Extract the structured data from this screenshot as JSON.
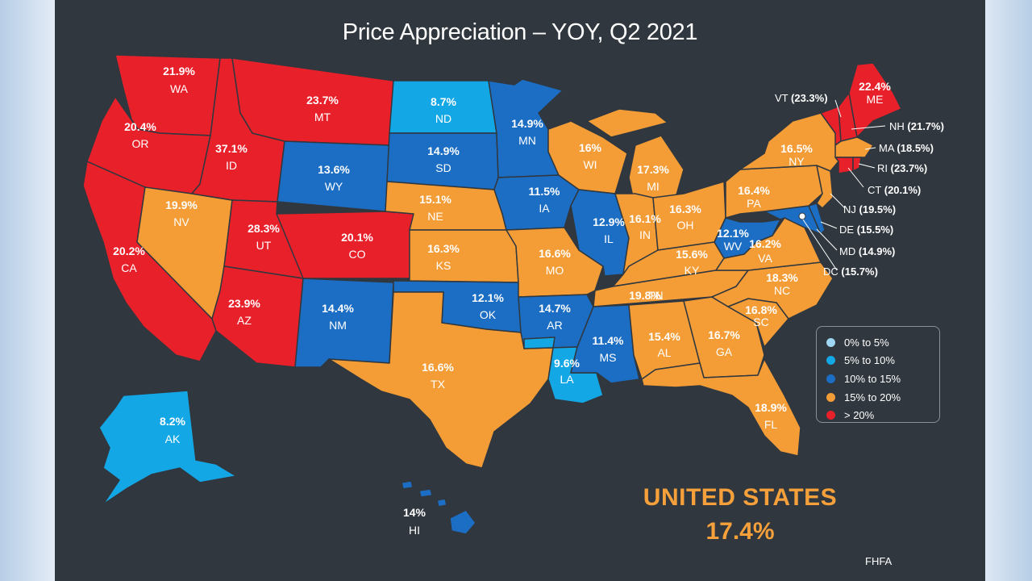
{
  "title": "Price Appreciation – YOY, Q2 2021",
  "national": {
    "label": "UNITED STATES",
    "value": "17.4%"
  },
  "source": "FHFA",
  "colors": {
    "band_0_5": "#9fd6f3",
    "band_5_10": "#14a7e6",
    "band_10_15": "#1b6ec3",
    "band_15_20": "#f49d37",
    "band_20_plus": "#e8202a",
    "background": "#30373e",
    "national_text": "#f5a03a"
  },
  "legend": [
    {
      "label": "0% to 5%",
      "color": "#9fd6f3"
    },
    {
      "label": "5% to 10%",
      "color": "#14a7e6"
    },
    {
      "label": "10% to 15%",
      "color": "#1b6ec3"
    },
    {
      "label": "15% to 20%",
      "color": "#f49d37"
    },
    {
      "label": "> 20%",
      "color": "#e8202a"
    }
  ],
  "states": {
    "WA": {
      "abbr": "WA",
      "value": "21.9%"
    },
    "OR": {
      "abbr": "OR",
      "value": "20.4%"
    },
    "CA": {
      "abbr": "CA",
      "value": "20.2%"
    },
    "ID": {
      "abbr": "ID",
      "value": "37.1%"
    },
    "NV": {
      "abbr": "NV",
      "value": "19.9%"
    },
    "MT": {
      "abbr": "MT",
      "value": "23.7%"
    },
    "WY": {
      "abbr": "WY",
      "value": "13.6%"
    },
    "UT": {
      "abbr": "UT",
      "value": "28.3%"
    },
    "AZ": {
      "abbr": "AZ",
      "value": "23.9%"
    },
    "CO": {
      "abbr": "CO",
      "value": "20.1%"
    },
    "NM": {
      "abbr": "NM",
      "value": "14.4%"
    },
    "ND": {
      "abbr": "ND",
      "value": "8.7%"
    },
    "SD": {
      "abbr": "SD",
      "value": "14.9%"
    },
    "NE": {
      "abbr": "NE",
      "value": "15.1%"
    },
    "KS": {
      "abbr": "KS",
      "value": "16.3%"
    },
    "OK": {
      "abbr": "OK",
      "value": "12.1%"
    },
    "TX": {
      "abbr": "TX",
      "value": "16.6%"
    },
    "MN": {
      "abbr": "MN",
      "value": "14.9%"
    },
    "IA": {
      "abbr": "IA",
      "value": "11.5%"
    },
    "MO": {
      "abbr": "MO",
      "value": "16.6%"
    },
    "AR": {
      "abbr": "AR",
      "value": "14.7%"
    },
    "LA": {
      "abbr": "LA",
      "value": "9.6%"
    },
    "WI": {
      "abbr": "WI",
      "value": "16%"
    },
    "IL": {
      "abbr": "IL",
      "value": "12.9%"
    },
    "MS": {
      "abbr": "MS",
      "value": "11.4%"
    },
    "MI": {
      "abbr": "MI",
      "value": "17.3%"
    },
    "IN": {
      "abbr": "IN",
      "value": "16.1%"
    },
    "OH": {
      "abbr": "OH",
      "value": "16.3%"
    },
    "KY": {
      "abbr": "KY",
      "value": "15.6%"
    },
    "TN": {
      "abbr": "TN",
      "value": "19.8%"
    },
    "AL": {
      "abbr": "AL",
      "value": "15.4%"
    },
    "GA": {
      "abbr": "GA",
      "value": "16.7%"
    },
    "FL": {
      "abbr": "FL",
      "value": "18.9%"
    },
    "SC": {
      "abbr": "SC",
      "value": "16.8%"
    },
    "NC": {
      "abbr": "NC",
      "value": "18.3%"
    },
    "VA": {
      "abbr": "VA",
      "value": "16.2%"
    },
    "WV": {
      "abbr": "WV",
      "value": "12.1%"
    },
    "PA": {
      "abbr": "PA",
      "value": "16.4%"
    },
    "NY": {
      "abbr": "NY",
      "value": "16.5%"
    },
    "ME": {
      "abbr": "ME",
      "value": "22.4%"
    },
    "AK": {
      "abbr": "AK",
      "value": "8.2%"
    },
    "HI": {
      "abbr": "HI",
      "value": "14%"
    }
  },
  "callouts": {
    "VT": {
      "abbr": "VT",
      "value": "(23.3%)"
    },
    "NH": {
      "abbr": "NH",
      "value": "(21.7%)"
    },
    "MA": {
      "abbr": "MA",
      "value": "(18.5%)"
    },
    "RI": {
      "abbr": "RI",
      "value": "(23.7%)"
    },
    "CT": {
      "abbr": "CT",
      "value": "(20.1%)"
    },
    "NJ": {
      "abbr": "NJ",
      "value": "(19.5%)"
    },
    "DE": {
      "abbr": "DE",
      "value": "(15.5%)"
    },
    "MD": {
      "abbr": "MD",
      "value": "(14.9%)"
    },
    "DC": {
      "abbr": "DC",
      "value": "(15.7%)"
    }
  }
}
